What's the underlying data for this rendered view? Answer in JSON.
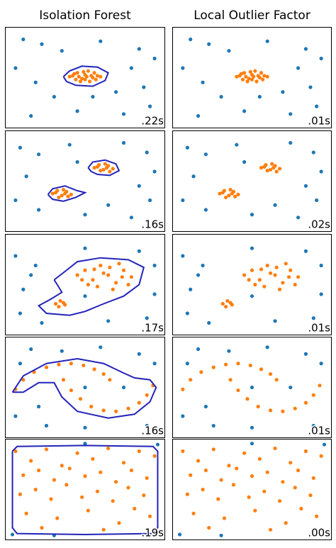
{
  "chart_data": [
    {
      "type": "scatter",
      "title": "Isolation Forest",
      "annotation": ".22s",
      "xlim": [
        0,
        100
      ],
      "ylim": [
        0,
        100
      ],
      "series": [
        {
          "color": "#1f77b4",
          "x": [
            10,
            22,
            35,
            60,
            85,
            95,
            5,
            18,
            30,
            70,
            88,
            45,
            75,
            92,
            15,
            55,
            80
          ],
          "values": [
            90,
            85,
            78,
            88,
            80,
            70,
            60,
            45,
            30,
            35,
            40,
            15,
            12,
            20,
            10,
            30,
            60
          ]
        },
        {
          "color": "#ff7f0e",
          "x": [
            42,
            45,
            48,
            50,
            52,
            55,
            58,
            47,
            53,
            44,
            56,
            50,
            40,
            60,
            49,
            54,
            46,
            51,
            57,
            43
          ],
          "values": [
            52,
            55,
            49,
            53,
            57,
            50,
            52,
            46,
            46,
            48,
            55,
            48,
            51,
            51,
            56,
            52,
            51,
            51,
            48,
            54
          ]
        }
      ],
      "boundaries": [
        {
          "x": [
            36,
            40,
            48,
            58,
            65,
            63,
            55,
            44,
            38,
            36
          ],
          "y": [
            51,
            57,
            62,
            61,
            55,
            47,
            41,
            42,
            46,
            51
          ]
        }
      ]
    },
    {
      "type": "scatter",
      "title": "Local Outlier Factor",
      "annotation": ".01s",
      "xlim": [
        0,
        100
      ],
      "ylim": [
        0,
        100
      ],
      "series": [
        {
          "color": "#1f77b4",
          "x": [
            10,
            22,
            35,
            60,
            85,
            95,
            5,
            18,
            30,
            70,
            88,
            45,
            75,
            92,
            15,
            55,
            80
          ],
          "values": [
            90,
            85,
            78,
            88,
            80,
            70,
            60,
            45,
            30,
            35,
            40,
            15,
            12,
            20,
            10,
            30,
            60
          ]
        },
        {
          "color": "#ff7f0e",
          "x": [
            42,
            45,
            48,
            50,
            52,
            55,
            58,
            47,
            53,
            44,
            56,
            50,
            40,
            60,
            49,
            54,
            46,
            51,
            57,
            43
          ],
          "values": [
            52,
            55,
            49,
            53,
            57,
            50,
            52,
            46,
            46,
            48,
            55,
            48,
            51,
            51,
            56,
            52,
            51,
            51,
            48,
            54
          ]
        }
      ]
    },
    {
      "type": "scatter",
      "annotation": ".16s",
      "xlim": [
        0,
        100
      ],
      "ylim": [
        0,
        100
      ],
      "series": [
        {
          "color": "#1f77b4",
          "x": [
            8,
            20,
            40,
            75,
            90,
            95,
            12,
            85,
            20,
            50,
            65,
            80,
            92,
            5,
            45
          ],
          "values": [
            85,
            78,
            88,
            90,
            80,
            60,
            55,
            45,
            20,
            15,
            25,
            12,
            30,
            30,
            70
          ]
        },
        {
          "color": "#ff7f0e",
          "x": [
            56,
            59,
            62,
            65,
            68,
            60,
            63,
            66,
            58,
            64,
            29,
            32,
            35,
            38,
            41,
            33,
            36,
            39,
            31,
            37
          ],
          "values": [
            64,
            67,
            62,
            66,
            63,
            61,
            68,
            60,
            65,
            64,
            37,
            40,
            35,
            39,
            36,
            33,
            41,
            34,
            38,
            37
          ]
        }
      ],
      "boundaries": [
        {
          "x": [
            52,
            55,
            63,
            70,
            72,
            66,
            58,
            54,
            52
          ],
          "y": [
            64,
            70,
            72,
            68,
            61,
            56,
            57,
            60,
            64
          ]
        },
        {
          "x": [
            26,
            29,
            37,
            45,
            50,
            44,
            36,
            29,
            26
          ],
          "y": [
            36,
            42,
            45,
            40,
            38,
            33,
            29,
            31,
            36
          ]
        }
      ]
    },
    {
      "type": "scatter",
      "annotation": ".02s",
      "xlim": [
        0,
        100
      ],
      "ylim": [
        0,
        100
      ],
      "series": [
        {
          "color": "#1f77b4",
          "x": [
            8,
            20,
            40,
            75,
            90,
            95,
            12,
            85,
            20,
            50,
            65,
            80,
            92,
            5,
            45
          ],
          "values": [
            85,
            78,
            88,
            90,
            80,
            60,
            55,
            45,
            20,
            15,
            25,
            12,
            30,
            30,
            70
          ]
        },
        {
          "color": "#ff7f0e",
          "x": [
            56,
            59,
            62,
            65,
            68,
            60,
            63,
            66,
            58,
            64,
            29,
            32,
            35,
            38,
            41,
            33,
            36,
            39,
            31,
            37
          ],
          "values": [
            64,
            67,
            62,
            66,
            63,
            61,
            68,
            60,
            65,
            64,
            37,
            40,
            35,
            39,
            36,
            33,
            41,
            34,
            38,
            37
          ]
        }
      ]
    },
    {
      "type": "scatter",
      "annotation": ".17s",
      "xlim": [
        0,
        100
      ],
      "ylim": [
        0,
        100
      ],
      "series": [
        {
          "color": "#1f77b4",
          "x": [
            5,
            18,
            10,
            8,
            22,
            50,
            85,
            95,
            95,
            90,
            65,
            50,
            15
          ],
          "values": [
            80,
            70,
            45,
            20,
            10,
            88,
            85,
            70,
            40,
            15,
            12,
            38,
            60
          ]
        },
        {
          "color": "#ff7f0e",
          "x": [
            45,
            50,
            55,
            60,
            65,
            70,
            75,
            80,
            58,
            68,
            52,
            62,
            72,
            78,
            48,
            66,
            56,
            74,
            31,
            34,
            37,
            33,
            36
          ],
          "values": [
            60,
            65,
            55,
            70,
            60,
            52,
            65,
            58,
            48,
            45,
            50,
            62,
            72,
            50,
            55,
            68,
            66,
            58,
            30,
            33,
            29,
            27,
            31
          ]
        }
      ],
      "boundaries": [
        {
          "x": [
            30,
            38,
            45,
            60,
            78,
            88,
            85,
            75,
            62,
            50,
            40,
            25,
            20,
            28,
            35,
            32,
            30
          ],
          "y": [
            55,
            65,
            74,
            78,
            76,
            68,
            50,
            38,
            30,
            22,
            18,
            20,
            28,
            35,
            42,
            50,
            55
          ]
        }
      ]
    },
    {
      "type": "scatter",
      "annotation": ".01s",
      "xlim": [
        0,
        100
      ],
      "ylim": [
        0,
        100
      ],
      "series": [
        {
          "color": "#1f77b4",
          "x": [
            5,
            18,
            10,
            8,
            22,
            50,
            85,
            95,
            95,
            90,
            65,
            50,
            15
          ],
          "values": [
            80,
            70,
            45,
            20,
            10,
            88,
            85,
            70,
            40,
            15,
            12,
            38,
            60
          ]
        },
        {
          "color": "#ff7f0e",
          "x": [
            45,
            50,
            55,
            60,
            65,
            70,
            75,
            80,
            58,
            68,
            52,
            62,
            72,
            78,
            48,
            66,
            56,
            74,
            31,
            34,
            37,
            33,
            36
          ],
          "values": [
            60,
            65,
            55,
            70,
            60,
            52,
            65,
            58,
            48,
            45,
            50,
            62,
            72,
            50,
            55,
            68,
            66,
            58,
            30,
            33,
            29,
            27,
            31
          ]
        }
      ]
    },
    {
      "type": "scatter",
      "annotation": ".16s",
      "xlim": [
        0,
        100
      ],
      "ylim": [
        0,
        100
      ],
      "series": [
        {
          "color": "#1f77b4",
          "x": [
            15,
            35,
            60,
            85,
            95,
            5,
            20,
            25,
            50,
            75,
            50,
            90,
            8
          ],
          "values": [
            90,
            88,
            92,
            85,
            75,
            20,
            30,
            10,
            8,
            50,
            50,
            10,
            75
          ]
        },
        {
          "color": "#ff7f0e",
          "x": [
            5,
            10,
            17,
            25,
            33,
            41,
            49,
            56,
            62,
            66,
            36,
            41,
            47,
            54,
            62,
            70,
            78,
            85,
            90,
            94
          ],
          "values": [
            48,
            58,
            66,
            71,
            74,
            75,
            73,
            69,
            64,
            58,
            58,
            47,
            38,
            30,
            26,
            25,
            28,
            34,
            42,
            52
          ]
        }
      ],
      "boundaries": [
        {
          "x": [
            3,
            10,
            25,
            45,
            62,
            75,
            82,
            92,
            96,
            92,
            82,
            65,
            45,
            35,
            30,
            20,
            10,
            3
          ],
          "y": [
            45,
            62,
            75,
            80,
            75,
            65,
            60,
            58,
            50,
            35,
            22,
            18,
            25,
            40,
            55,
            55,
            45,
            45
          ]
        }
      ]
    },
    {
      "type": "scatter",
      "annotation": ".01s",
      "xlim": [
        0,
        100
      ],
      "ylim": [
        0,
        100
      ],
      "series": [
        {
          "color": "#1f77b4",
          "x": [
            15,
            35,
            60,
            85,
            95,
            5,
            20,
            25,
            50,
            75,
            50,
            90,
            8
          ],
          "values": [
            90,
            88,
            92,
            85,
            75,
            20,
            30,
            10,
            8,
            50,
            50,
            10,
            75
          ]
        },
        {
          "color": "#ff7f0e",
          "x": [
            5,
            10,
            17,
            25,
            33,
            41,
            49,
            56,
            62,
            66,
            36,
            41,
            47,
            54,
            62,
            70,
            78,
            85,
            90,
            94
          ],
          "values": [
            48,
            58,
            66,
            71,
            74,
            75,
            73,
            69,
            64,
            58,
            58,
            47,
            38,
            30,
            26,
            25,
            28,
            34,
            42,
            52
          ]
        }
      ]
    },
    {
      "type": "scatter",
      "annotation": ".19s",
      "xlim": [
        0,
        100
      ],
      "ylim": [
        0,
        100
      ],
      "series": [
        {
          "color": "#1f77b4",
          "x": [
            3,
            97,
            50,
            30
          ],
          "values": [
            3,
            97,
            98,
            2
          ]
        },
        {
          "color": "#ff7f0e",
          "x": [
            5,
            15,
            25,
            35,
            45,
            55,
            65,
            75,
            85,
            95,
            10,
            20,
            30,
            40,
            50,
            60,
            70,
            80,
            90,
            8,
            18,
            28,
            38,
            48,
            58,
            68,
            78,
            88,
            12,
            32,
            52,
            72,
            92,
            22,
            62,
            82
          ],
          "values": [
            90,
            80,
            92,
            75,
            88,
            82,
            93,
            78,
            90,
            85,
            65,
            70,
            60,
            72,
            64,
            68,
            58,
            70,
            62,
            45,
            50,
            40,
            55,
            42,
            48,
            38,
            52,
            44,
            25,
            20,
            28,
            15,
            22,
            10,
            8,
            30
          ]
        }
      ],
      "boundaries": [
        {
          "x": [
            3,
            6,
            50,
            94,
            97,
            97,
            94,
            50,
            6,
            3,
            3
          ],
          "y": [
            90,
            95,
            96,
            95,
            90,
            10,
            4,
            3,
            4,
            10,
            90
          ]
        }
      ]
    },
    {
      "type": "scatter",
      "annotation": ".00s",
      "xlim": [
        0,
        100
      ],
      "ylim": [
        0,
        100
      ],
      "series": [
        {
          "color": "#1f77b4",
          "x": [
            3,
            97,
            50,
            30
          ],
          "values": [
            3,
            97,
            98,
            2
          ]
        },
        {
          "color": "#ff7f0e",
          "x": [
            5,
            15,
            25,
            35,
            45,
            55,
            65,
            75,
            85,
            95,
            10,
            20,
            30,
            40,
            50,
            60,
            70,
            80,
            90,
            8,
            18,
            28,
            38,
            48,
            58,
            68,
            78,
            88,
            12,
            32,
            52,
            72,
            92,
            22,
            62,
            82
          ],
          "values": [
            90,
            80,
            92,
            75,
            88,
            82,
            93,
            78,
            90,
            85,
            65,
            70,
            60,
            72,
            64,
            68,
            58,
            70,
            62,
            45,
            50,
            40,
            55,
            42,
            48,
            38,
            52,
            44,
            25,
            20,
            28,
            15,
            22,
            10,
            8,
            30
          ]
        }
      ]
    }
  ]
}
